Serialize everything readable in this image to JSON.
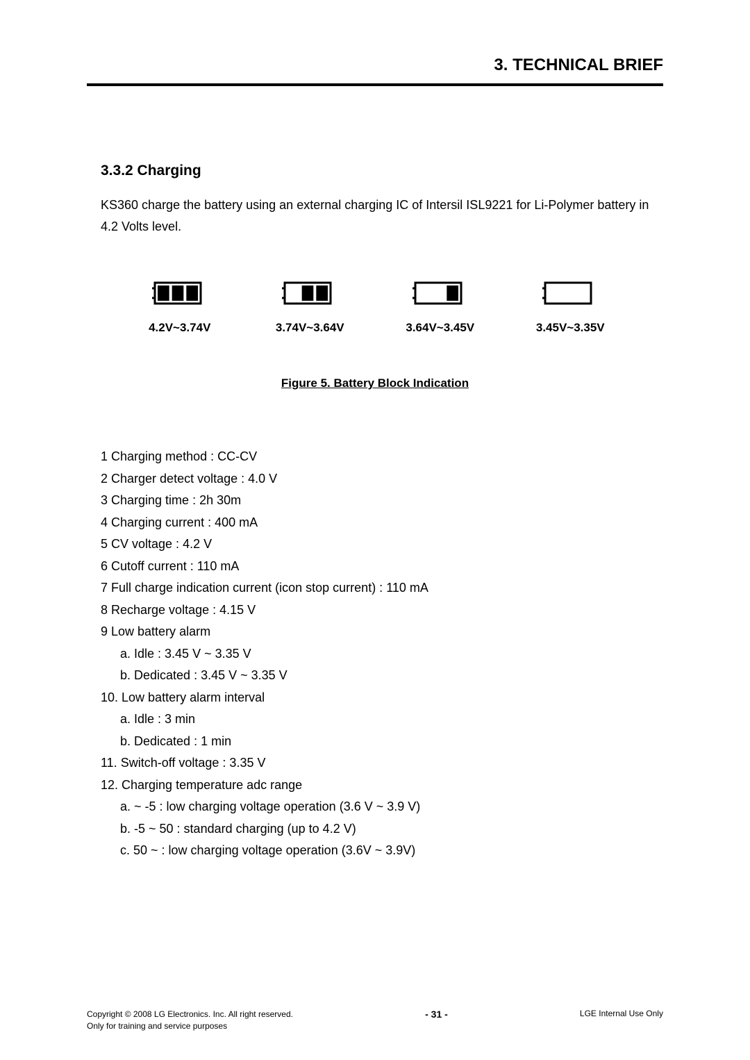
{
  "header": {
    "chapter_title": "3. TECHNICAL BRIEF"
  },
  "section": {
    "heading": "3.3.2 Charging",
    "intro": "KS360 charge the battery using an external charging IC of Intersil ISL9221 for Li-Polymer battery in 4.2 Volts level."
  },
  "figure": {
    "caption": "Figure 5. Battery Block Indication",
    "batteries": [
      {
        "bars": 3,
        "label": "4.2V~3.74V"
      },
      {
        "bars": 2,
        "label": "3.74V~3.64V"
      },
      {
        "bars": 1,
        "label": "3.64V~3.45V"
      },
      {
        "bars": 0,
        "label": "3.45V~3.35V"
      }
    ],
    "icon_style": {
      "stroke": "#000000",
      "fill": "#000000",
      "outline_width": 3,
      "bar_gap": 4
    }
  },
  "specs": [
    {
      "text": "1 Charging method : CC-CV"
    },
    {
      "text": "2 Charger detect voltage : 4.0 V"
    },
    {
      "text": "3 Charging time : 2h 30m"
    },
    {
      "text": "4 Charging current : 400 mA"
    },
    {
      "text": "5 CV voltage : 4.2 V"
    },
    {
      "text": "6 Cutoff current : 110 mA"
    },
    {
      "text": "7 Full charge indication current (icon stop current) : 110 mA"
    },
    {
      "text": "8 Recharge voltage : 4.15 V"
    },
    {
      "text": "9 Low battery alarm"
    },
    {
      "text": "a. Idle : 3.45 V ~ 3.35 V",
      "sub": true
    },
    {
      "text": "b. Dedicated : 3.45 V ~ 3.35 V",
      "sub": true
    },
    {
      "text": "10. Low battery alarm interval"
    },
    {
      "text": "a. Idle : 3 min",
      "sub": true
    },
    {
      "text": "b. Dedicated : 1 min",
      "sub": true
    },
    {
      "text": "11. Switch-off voltage : 3.35 V"
    },
    {
      "text": "12. Charging temperature adc range"
    },
    {
      "text": "a. ~ -5 : low charging voltage operation (3.6 V ~ 3.9 V)",
      "sub": true
    },
    {
      "text": "b. -5 ~ 50 : standard charging (up to 4.2 V)",
      "sub": true
    },
    {
      "text": "c. 50 ~ : low charging voltage operation (3.6V ~ 3.9V)",
      "sub": true
    }
  ],
  "footer": {
    "left_line1": "Copyright © 2008 LG Electronics. Inc.  All right reserved.",
    "left_line2": "Only for training and service purposes",
    "center": "- 31 -",
    "right": "LGE Internal Use Only"
  }
}
